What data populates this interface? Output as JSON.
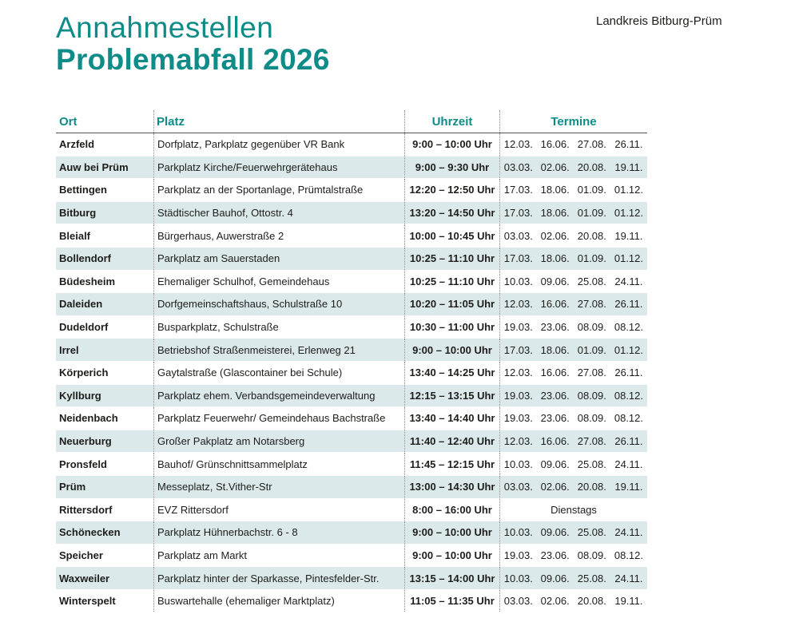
{
  "header": {
    "title_line1": "Annahmestellen",
    "title_line2": "Problemabfall 2026",
    "organization": "Landkreis Bitburg-Prüm"
  },
  "table": {
    "columns": {
      "ort": "Ort",
      "platz": "Platz",
      "uhrzeit": "Uhrzeit",
      "termine": "Termine"
    },
    "rows": [
      {
        "ort": "Arzfeld",
        "platz": "Dorfplatz, Parkplatz gegenüber VR Bank",
        "uhrzeit": "9:00 – 10:00 Uhr",
        "termine": [
          "12.03.",
          "16.06.",
          "27.08.",
          "26.11."
        ]
      },
      {
        "ort": "Auw bei Prüm",
        "platz": "Parkplatz Kirche/Feuerwehrgerätehaus",
        "uhrzeit": "9:00 – 9:30 Uhr",
        "termine": [
          "03.03.",
          "02.06.",
          "20.08.",
          "19.11."
        ]
      },
      {
        "ort": "Bettingen",
        "platz": "Parkplatz an der Sportanlage, Prümtalstraße",
        "uhrzeit": "12:20 – 12:50 Uhr",
        "termine": [
          "17.03.",
          "18.06.",
          "01.09.",
          "01.12."
        ]
      },
      {
        "ort": "Bitburg",
        "platz": "Städtischer Bauhof, Ottostr. 4",
        "uhrzeit": "13:20 – 14:50 Uhr",
        "termine": [
          "17.03.",
          "18.06.",
          "01.09.",
          "01.12."
        ]
      },
      {
        "ort": "Bleialf",
        "platz": "Bürgerhaus, Auwerstraße 2",
        "uhrzeit": "10:00 – 10:45 Uhr",
        "termine": [
          "03.03.",
          "02.06.",
          "20.08.",
          "19.11."
        ]
      },
      {
        "ort": "Bollendorf",
        "platz": "Parkplatz am Sauerstaden",
        "uhrzeit": "10:25 – 11:10 Uhr",
        "termine": [
          "17.03.",
          "18.06.",
          "01.09.",
          "01.12."
        ]
      },
      {
        "ort": "Büdesheim",
        "platz": "Ehemaliger Schulhof, Gemeindehaus",
        "uhrzeit": "10:25 – 11:10 Uhr",
        "termine": [
          "10.03.",
          "09.06.",
          "25.08.",
          "24.11."
        ]
      },
      {
        "ort": "Daleiden",
        "platz": "Dorfgemeinschaftshaus, Schulstraße 10",
        "uhrzeit": "10:20 – 11:05 Uhr",
        "termine": [
          "12.03.",
          "16.06.",
          "27.08.",
          "26.11."
        ]
      },
      {
        "ort": "Dudeldorf",
        "platz": "Busparkplatz, Schulstraße",
        "uhrzeit": "10:30 – 11:00 Uhr",
        "termine": [
          "19.03.",
          "23.06.",
          "08.09.",
          "08.12."
        ]
      },
      {
        "ort": "Irrel",
        "platz": "Betriebshof Straßenmeisterei, Erlenweg 21",
        "uhrzeit": "9:00 – 10:00 Uhr",
        "termine": [
          "17.03.",
          "18.06.",
          "01.09.",
          "01.12."
        ]
      },
      {
        "ort": "Körperich",
        "platz": "Gaytalstraße (Glascontainer bei Schule)",
        "uhrzeit": "13:40 – 14:25 Uhr",
        "termine": [
          "12.03.",
          "16.06.",
          "27.08.",
          "26.11."
        ]
      },
      {
        "ort": "Kyllburg",
        "platz": "Parkplatz ehem. Verbandsgemeindeverwaltung",
        "uhrzeit": "12:15 – 13:15 Uhr",
        "termine": [
          "19.03.",
          "23.06.",
          "08.09.",
          "08.12."
        ]
      },
      {
        "ort": "Neidenbach",
        "platz": "Parkplatz Feuerwehr/ Gemeindehaus Bachstraße",
        "uhrzeit": "13:40 – 14:40 Uhr",
        "termine": [
          "19.03.",
          "23.06.",
          "08.09.",
          "08.12."
        ]
      },
      {
        "ort": "Neuerburg",
        "platz": "Großer Pakplatz am Notarsberg",
        "uhrzeit": "11:40 – 12:40 Uhr",
        "termine": [
          "12.03.",
          "16.06.",
          "27.08.",
          "26.11."
        ]
      },
      {
        "ort": "Pronsfeld",
        "platz": "Bauhof/ Grünschnittsammelplatz",
        "uhrzeit": "11:45 – 12:15 Uhr",
        "termine": [
          "10.03.",
          "09.06.",
          "25.08.",
          "24.11."
        ]
      },
      {
        "ort": "Prüm",
        "platz": "Messeplatz, St.Vither-Str",
        "uhrzeit": "13:00 – 14:30 Uhr",
        "termine": [
          "03.03.",
          "02.06.",
          "20.08.",
          "19.11."
        ]
      },
      {
        "ort": "Rittersdorf",
        "platz": "EVZ Rittersdorf",
        "uhrzeit": "8:00 – 16:00 Uhr",
        "note": "Dienstags"
      },
      {
        "ort": "Schönecken",
        "platz": "Parkplatz Hühnerbachstr. 6 - 8",
        "uhrzeit": "9:00 – 10:00 Uhr",
        "termine": [
          "10.03.",
          "09.06.",
          "25.08.",
          "24.11."
        ]
      },
      {
        "ort": "Speicher",
        "platz": "Parkplatz am Markt",
        "uhrzeit": "9:00 – 10:00 Uhr",
        "termine": [
          "19.03.",
          "23.06.",
          "08.09.",
          "08.12."
        ]
      },
      {
        "ort": "Waxweiler",
        "platz": "Parkplatz hinter der Sparkasse, Pintesfelder-Str.",
        "uhrzeit": "13:15 – 14:00 Uhr",
        "termine": [
          "10.03.",
          "09.06.",
          "25.08.",
          "24.11."
        ]
      },
      {
        "ort": "Winterspelt",
        "platz": "Buswartehalle (ehemaliger Marktplatz)",
        "uhrzeit": "11:05 – 11:35 Uhr",
        "termine": [
          "03.03.",
          "02.06.",
          "20.08.",
          "19.11."
        ]
      }
    ]
  }
}
